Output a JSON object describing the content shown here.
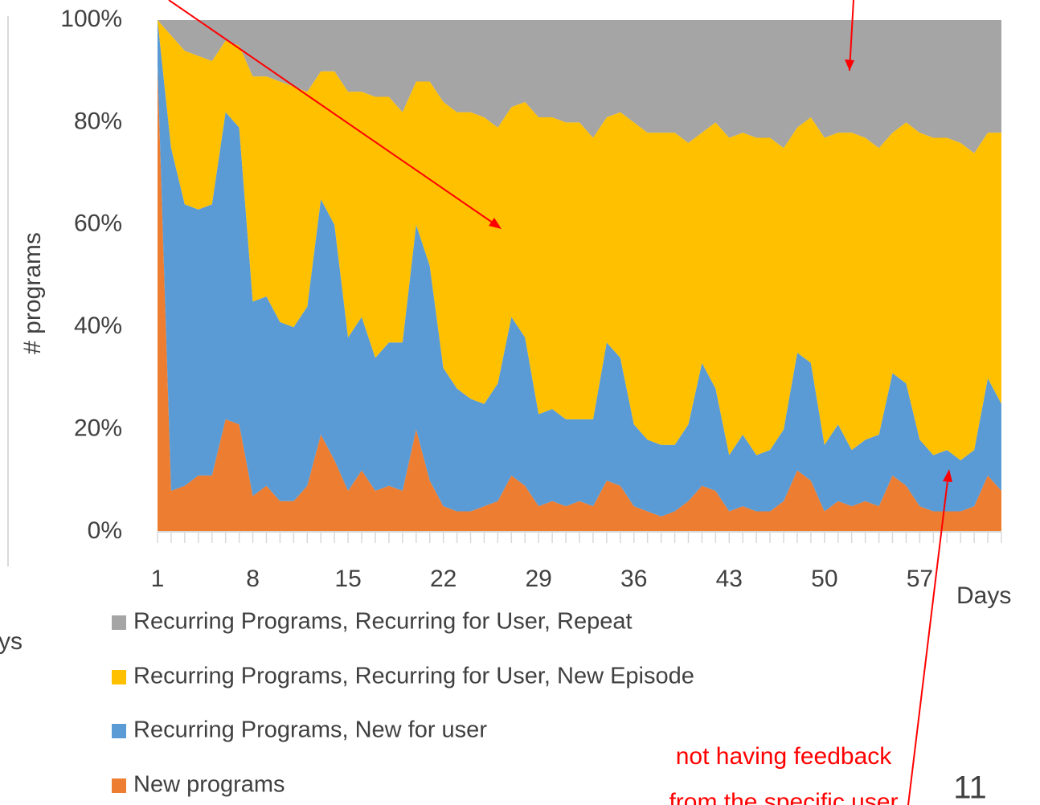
{
  "chart_data": {
    "type": "stacked_area",
    "y_label": "# programs",
    "x_label": "Days",
    "x": [
      1,
      2,
      3,
      4,
      5,
      6,
      7,
      8,
      9,
      10,
      11,
      12,
      13,
      14,
      15,
      16,
      17,
      18,
      19,
      20,
      21,
      22,
      23,
      24,
      25,
      26,
      27,
      28,
      29,
      30,
      31,
      32,
      33,
      34,
      35,
      36,
      37,
      38,
      39,
      40,
      41,
      42,
      43,
      44,
      45,
      46,
      47,
      48,
      49,
      50,
      51,
      52,
      53,
      54,
      55,
      56,
      57,
      58,
      59,
      60,
      61,
      62,
      63
    ],
    "xlim": [
      1,
      63
    ],
    "xticks": [
      1,
      8,
      15,
      22,
      29,
      36,
      43,
      50,
      57
    ],
    "ylim": [
      0,
      100
    ],
    "yticks": [
      {
        "value": 0,
        "label": "0%"
      },
      {
        "value": 20,
        "label": "20%"
      },
      {
        "value": 40,
        "label": "40%"
      },
      {
        "value": 60,
        "label": "60%"
      },
      {
        "value": 80,
        "label": "80%"
      },
      {
        "value": 100,
        "label": "100%"
      }
    ],
    "series": [
      {
        "name": "New programs",
        "color": "#ed7d31",
        "values": [
          91,
          8,
          9,
          11,
          11,
          22,
          21,
          7,
          9,
          6,
          6,
          9,
          19,
          14,
          8,
          12,
          8,
          9,
          8,
          20,
          10,
          5,
          4,
          4,
          5,
          6,
          11,
          9,
          5,
          6,
          5,
          6,
          5,
          10,
          9,
          5,
          4,
          3,
          4,
          6,
          9,
          8,
          4,
          5,
          4,
          4,
          6,
          12,
          10,
          4,
          6,
          5,
          6,
          5,
          11,
          9,
          5,
          4,
          4,
          4,
          5,
          11,
          8
        ]
      },
      {
        "name": "Recurring Programs, New for user",
        "color": "#5b9bd5",
        "values": [
          9,
          67,
          55,
          52,
          53,
          60,
          58,
          38,
          37,
          35,
          34,
          35,
          46,
          46,
          30,
          30,
          26,
          28,
          29,
          40,
          42,
          27,
          24,
          22,
          20,
          23,
          31,
          29,
          18,
          18,
          17,
          16,
          17,
          27,
          25,
          16,
          14,
          14,
          13,
          15,
          24,
          20,
          11,
          14,
          11,
          12,
          14,
          23,
          23,
          13,
          15,
          11,
          12,
          14,
          20,
          20,
          13,
          11,
          12,
          10,
          11,
          19,
          17
        ]
      },
      {
        "name": "Recurring Programs, Recurring for User, New Episode",
        "color": "#ffc000",
        "values": [
          0,
          22,
          30,
          30,
          28,
          14,
          16,
          44,
          43,
          47,
          47,
          42,
          25,
          30,
          48,
          44,
          51,
          48,
          45,
          28,
          36,
          52,
          54,
          56,
          56,
          50,
          41,
          46,
          58,
          57,
          58,
          58,
          55,
          44,
          48,
          59,
          60,
          61,
          61,
          55,
          45,
          52,
          62,
          59,
          62,
          61,
          55,
          44,
          48,
          60,
          57,
          62,
          59,
          56,
          47,
          51,
          60,
          62,
          61,
          62,
          58,
          48,
          53
        ]
      },
      {
        "name": "Recurring Programs, Recurring for User, Repeat",
        "color": "#a5a5a5",
        "values": [
          0,
          3,
          6,
          7,
          8,
          4,
          5,
          11,
          11,
          12,
          13,
          14,
          10,
          10,
          14,
          14,
          15,
          15,
          18,
          12,
          12,
          16,
          18,
          18,
          19,
          21,
          17,
          16,
          19,
          19,
          20,
          20,
          23,
          19,
          18,
          20,
          22,
          22,
          22,
          24,
          22,
          20,
          23,
          22,
          23,
          23,
          25,
          21,
          19,
          23,
          22,
          22,
          23,
          25,
          22,
          20,
          22,
          23,
          23,
          24,
          26,
          22,
          22
        ]
      }
    ],
    "annotation": [
      "not having feedback",
      "from the specific user"
    ],
    "fragment_text": "ys",
    "slide_number": "11"
  }
}
